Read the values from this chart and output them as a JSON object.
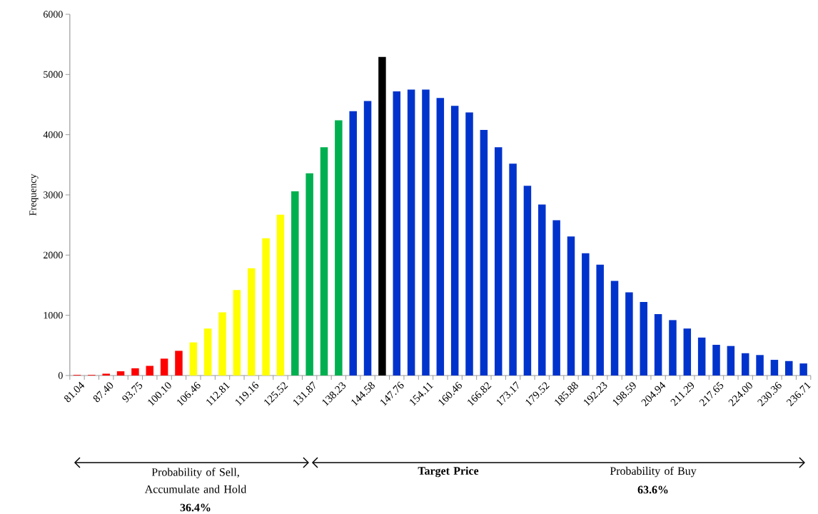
{
  "chart_data": {
    "type": "bar",
    "ylabel": "Frequency",
    "categories": [
      "81.04",
      null,
      "87.40",
      null,
      "93.75",
      null,
      "100.10",
      null,
      "106.46",
      null,
      "112.81",
      null,
      "119.16",
      null,
      "125.52",
      null,
      "131.87",
      null,
      "138.23",
      null,
      "144.58",
      null,
      "147.76",
      null,
      "154.11",
      null,
      "160.46",
      null,
      "166.82",
      null,
      "173.17",
      null,
      "179.52",
      null,
      "185.88",
      null,
      "192.23",
      null,
      "198.59",
      null,
      "204.94",
      null,
      "211.29",
      null,
      "217.65",
      null,
      "224.00",
      null,
      "230.36",
      null,
      "236.71"
    ],
    "values": [
      10,
      10,
      30,
      70,
      120,
      160,
      280,
      410,
      550,
      780,
      1050,
      1420,
      1780,
      2280,
      2670,
      3060,
      3360,
      3790,
      4240,
      4390,
      4560,
      5290,
      4720,
      4750,
      4750,
      4610,
      4480,
      4370,
      4080,
      3790,
      3520,
      3150,
      2840,
      2580,
      2310,
      2030,
      1840,
      1570,
      1380,
      1220,
      1020,
      920,
      780,
      630,
      510,
      490,
      370,
      340,
      260,
      240,
      200
    ],
    "colors": [
      "#ff0000",
      "#ff0000",
      "#ff0000",
      "#ff0000",
      "#ff0000",
      "#ff0000",
      "#ff0000",
      "#ff0000",
      "#ffff00",
      "#ffff00",
      "#ffff00",
      "#ffff00",
      "#ffff00",
      "#ffff00",
      "#ffff00",
      "#00b050",
      "#00b050",
      "#00b050",
      "#00b050",
      "#0033cc",
      "#0033cc",
      "#000000",
      "#0033cc",
      "#0033cc",
      "#0033cc",
      "#0033cc",
      "#0033cc",
      "#0033cc",
      "#0033cc",
      "#0033cc",
      "#0033cc",
      "#0033cc",
      "#0033cc",
      "#0033cc",
      "#0033cc",
      "#0033cc",
      "#0033cc",
      "#0033cc",
      "#0033cc",
      "#0033cc",
      "#0033cc",
      "#0033cc",
      "#0033cc",
      "#0033cc",
      "#0033cc",
      "#0033cc",
      "#0033cc",
      "#0033cc",
      "#0033cc",
      "#0033cc",
      "#0033cc"
    ],
    "ylim": [
      0,
      6000
    ],
    "yticks": [
      0,
      1000,
      2000,
      3000,
      4000,
      5000,
      6000
    ],
    "annotations": [
      "Probability of Sell, Accumulate and Hold",
      "36.4%",
      "Target Price",
      "Probability of Buy",
      "63.6%"
    ]
  }
}
